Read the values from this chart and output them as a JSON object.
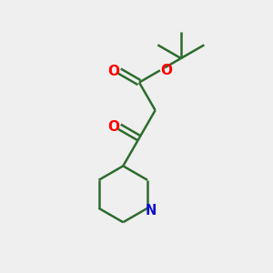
{
  "bg_color": "#efefef",
  "bond_color": "#2d6b2d",
  "O_color": "#ff0000",
  "N_color": "#1010cc",
  "lw": 1.8,
  "figsize": [
    3.0,
    3.0
  ],
  "dpi": 100,
  "xlim": [
    0,
    10
  ],
  "ylim": [
    0,
    10
  ]
}
